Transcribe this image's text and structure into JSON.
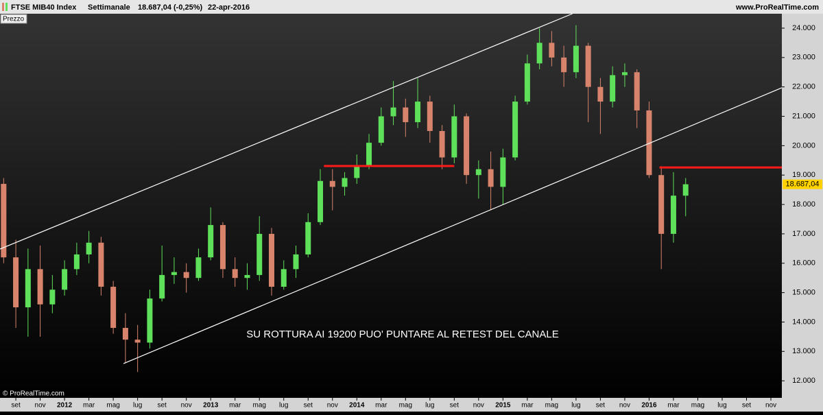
{
  "chart_data": {
    "type": "candlestick",
    "title": "FTSE MIB40 Index",
    "period": "Settimanale",
    "quote": "18.687,04 (-0,25%)",
    "date": "22-apr-2016",
    "site": "www.ProRealTime.com",
    "panel_label": "Prezzo",
    "copyright": "© ProRealTime.com",
    "annotation": "SU ROTTURA AI 19200 PUO' PUNTARE AL RETEST DEL CANALE",
    "last_price": {
      "value": 18687.04,
      "label": "18.687,04"
    },
    "up_color": "#5fe05a",
    "down_color": "#d8846c",
    "x": [
      7,
      8,
      9,
      10,
      11,
      12,
      13,
      14,
      15,
      16,
      17,
      18,
      19,
      20,
      21,
      22,
      23,
      24,
      25,
      26,
      27,
      28,
      29,
      30,
      31,
      32,
      33,
      34,
      35,
      36,
      37,
      38,
      39,
      40,
      41,
      42,
      43,
      44,
      45,
      46,
      47,
      48,
      49,
      50,
      51,
      52,
      53,
      54,
      55,
      56,
      57,
      58,
      59,
      60,
      61,
      62,
      63
    ],
    "open": [
      18700,
      16200,
      14500,
      15800,
      14600,
      15100,
      15800,
      16300,
      16700,
      15200,
      13800,
      13400,
      13300,
      14800,
      15600,
      15700,
      15500,
      16200,
      17300,
      15800,
      15500,
      15600,
      17000,
      15200,
      15800,
      16300,
      17400,
      18800,
      18600,
      18900,
      19300,
      20100,
      21000,
      21300,
      20800,
      21500,
      20500,
      19600,
      21000,
      19000,
      19200,
      18600,
      19600,
      21500,
      22800,
      23500,
      23000,
      22500,
      23400,
      22000,
      21500,
      22400,
      22500,
      21200,
      19000,
      17000,
      18300
    ],
    "high": [
      18900,
      16800,
      16500,
      16600,
      15600,
      16100,
      16700,
      17100,
      16900,
      15400,
      14300,
      13900,
      15100,
      16600,
      16200,
      16000,
      16500,
      17900,
      17400,
      16200,
      16000,
      17600,
      17200,
      16100,
      16600,
      17700,
      19200,
      19200,
      19100,
      19700,
      20400,
      21300,
      22200,
      21600,
      22300,
      21700,
      20700,
      21400,
      21100,
      19500,
      19800,
      19900,
      21700,
      23100,
      24000,
      23900,
      23400,
      24100,
      23500,
      22300,
      22700,
      22800,
      22600,
      21500,
      19300,
      19100,
      18900
    ],
    "low": [
      16000,
      13800,
      13500,
      13500,
      14300,
      14900,
      15600,
      16000,
      14900,
      13600,
      12600,
      12300,
      13100,
      14700,
      15300,
      15000,
      15400,
      16100,
      15500,
      15200,
      15100,
      15400,
      14900,
      15100,
      15500,
      16200,
      17300,
      17800,
      18300,
      18700,
      19200,
      20000,
      20700,
      20300,
      20600,
      20100,
      19200,
      19400,
      18700,
      18200,
      17800,
      18000,
      19500,
      21400,
      22600,
      22700,
      22000,
      22300,
      20800,
      20400,
      21300,
      22000,
      20600,
      18900,
      15800,
      16700,
      17600
    ],
    "close": [
      16200,
      14500,
      15800,
      14600,
      15100,
      15800,
      16300,
      16700,
      15200,
      13800,
      13400,
      13300,
      14800,
      15600,
      15700,
      15500,
      16200,
      17300,
      15800,
      15500,
      15600,
      17000,
      15200,
      15800,
      16300,
      17400,
      18800,
      18600,
      18900,
      19300,
      20100,
      21000,
      21300,
      20800,
      21500,
      20500,
      19600,
      21000,
      19000,
      19200,
      18600,
      19600,
      21500,
      22800,
      23500,
      23000,
      22500,
      23400,
      22000,
      21500,
      22400,
      22500,
      21200,
      19000,
      17000,
      18300,
      18687.04
    ],
    "lines": [
      {
        "color": "#ffffff",
        "x": [
          6.7,
          53.7
        ],
        "y": [
          16484,
          24490
        ]
      },
      {
        "color": "#ffffff",
        "x": [
          16.84,
          70.9
        ],
        "y": [
          12586,
          21970
        ]
      },
      {
        "color": "#ff1a1a",
        "x": [
          33.3,
          44.0
        ],
        "y": [
          19308,
          19308
        ]
      },
      {
        "color": "#ff1a1a",
        "x": [
          60.85,
          70.9
        ],
        "y": [
          19260,
          19260
        ]
      }
    ],
    "xlim": [
      6.7,
      70.9
    ],
    "ylim": [
      11420,
      24490
    ],
    "xticks": [
      {
        "value": 8,
        "label": "set"
      },
      {
        "value": 10,
        "label": "nov"
      },
      {
        "value": 12,
        "label": "2012"
      },
      {
        "value": 14,
        "label": "mar"
      },
      {
        "value": 16,
        "label": "mag"
      },
      {
        "value": 18,
        "label": "lug"
      },
      {
        "value": 20,
        "label": "set"
      },
      {
        "value": 22,
        "label": "nov"
      },
      {
        "value": 24,
        "label": "2013"
      },
      {
        "value": 26,
        "label": "mar"
      },
      {
        "value": 28,
        "label": "mag"
      },
      {
        "value": 30,
        "label": "lug"
      },
      {
        "value": 32,
        "label": "set"
      },
      {
        "value": 34,
        "label": "nov"
      },
      {
        "value": 36,
        "label": "2014"
      },
      {
        "value": 38,
        "label": "mar"
      },
      {
        "value": 40,
        "label": "mag"
      },
      {
        "value": 42,
        "label": "lug"
      },
      {
        "value": 44,
        "label": "set"
      },
      {
        "value": 46,
        "label": "nov"
      },
      {
        "value": 48,
        "label": "2015"
      },
      {
        "value": 50,
        "label": "mar"
      },
      {
        "value": 52,
        "label": "mag"
      },
      {
        "value": 54,
        "label": "lug"
      },
      {
        "value": 56,
        "label": "set"
      },
      {
        "value": 58,
        "label": "nov"
      },
      {
        "value": 60,
        "label": "2016"
      },
      {
        "value": 62,
        "label": "mar"
      },
      {
        "value": 64,
        "label": "mag"
      },
      {
        "value": 66,
        "label": "lug"
      },
      {
        "value": 68,
        "label": "set"
      },
      {
        "value": 70,
        "label": "nov"
      }
    ],
    "yticks": [
      {
        "value": 12000,
        "label": "12.000"
      },
      {
        "value": 13000,
        "label": "13.000"
      },
      {
        "value": 14000,
        "label": "14.000"
      },
      {
        "value": 15000,
        "label": "15.000"
      },
      {
        "value": 16000,
        "label": "16.000"
      },
      {
        "value": 17000,
        "label": "17.000"
      },
      {
        "value": 18000,
        "label": "18.000"
      },
      {
        "value": 19000,
        "label": "19.000"
      },
      {
        "value": 20000,
        "label": "20.000"
      },
      {
        "value": 21000,
        "label": "21.000"
      },
      {
        "value": 22000,
        "label": "22.000"
      },
      {
        "value": 23000,
        "label": "23.000"
      },
      {
        "value": 24000,
        "label": "24.000"
      }
    ]
  }
}
